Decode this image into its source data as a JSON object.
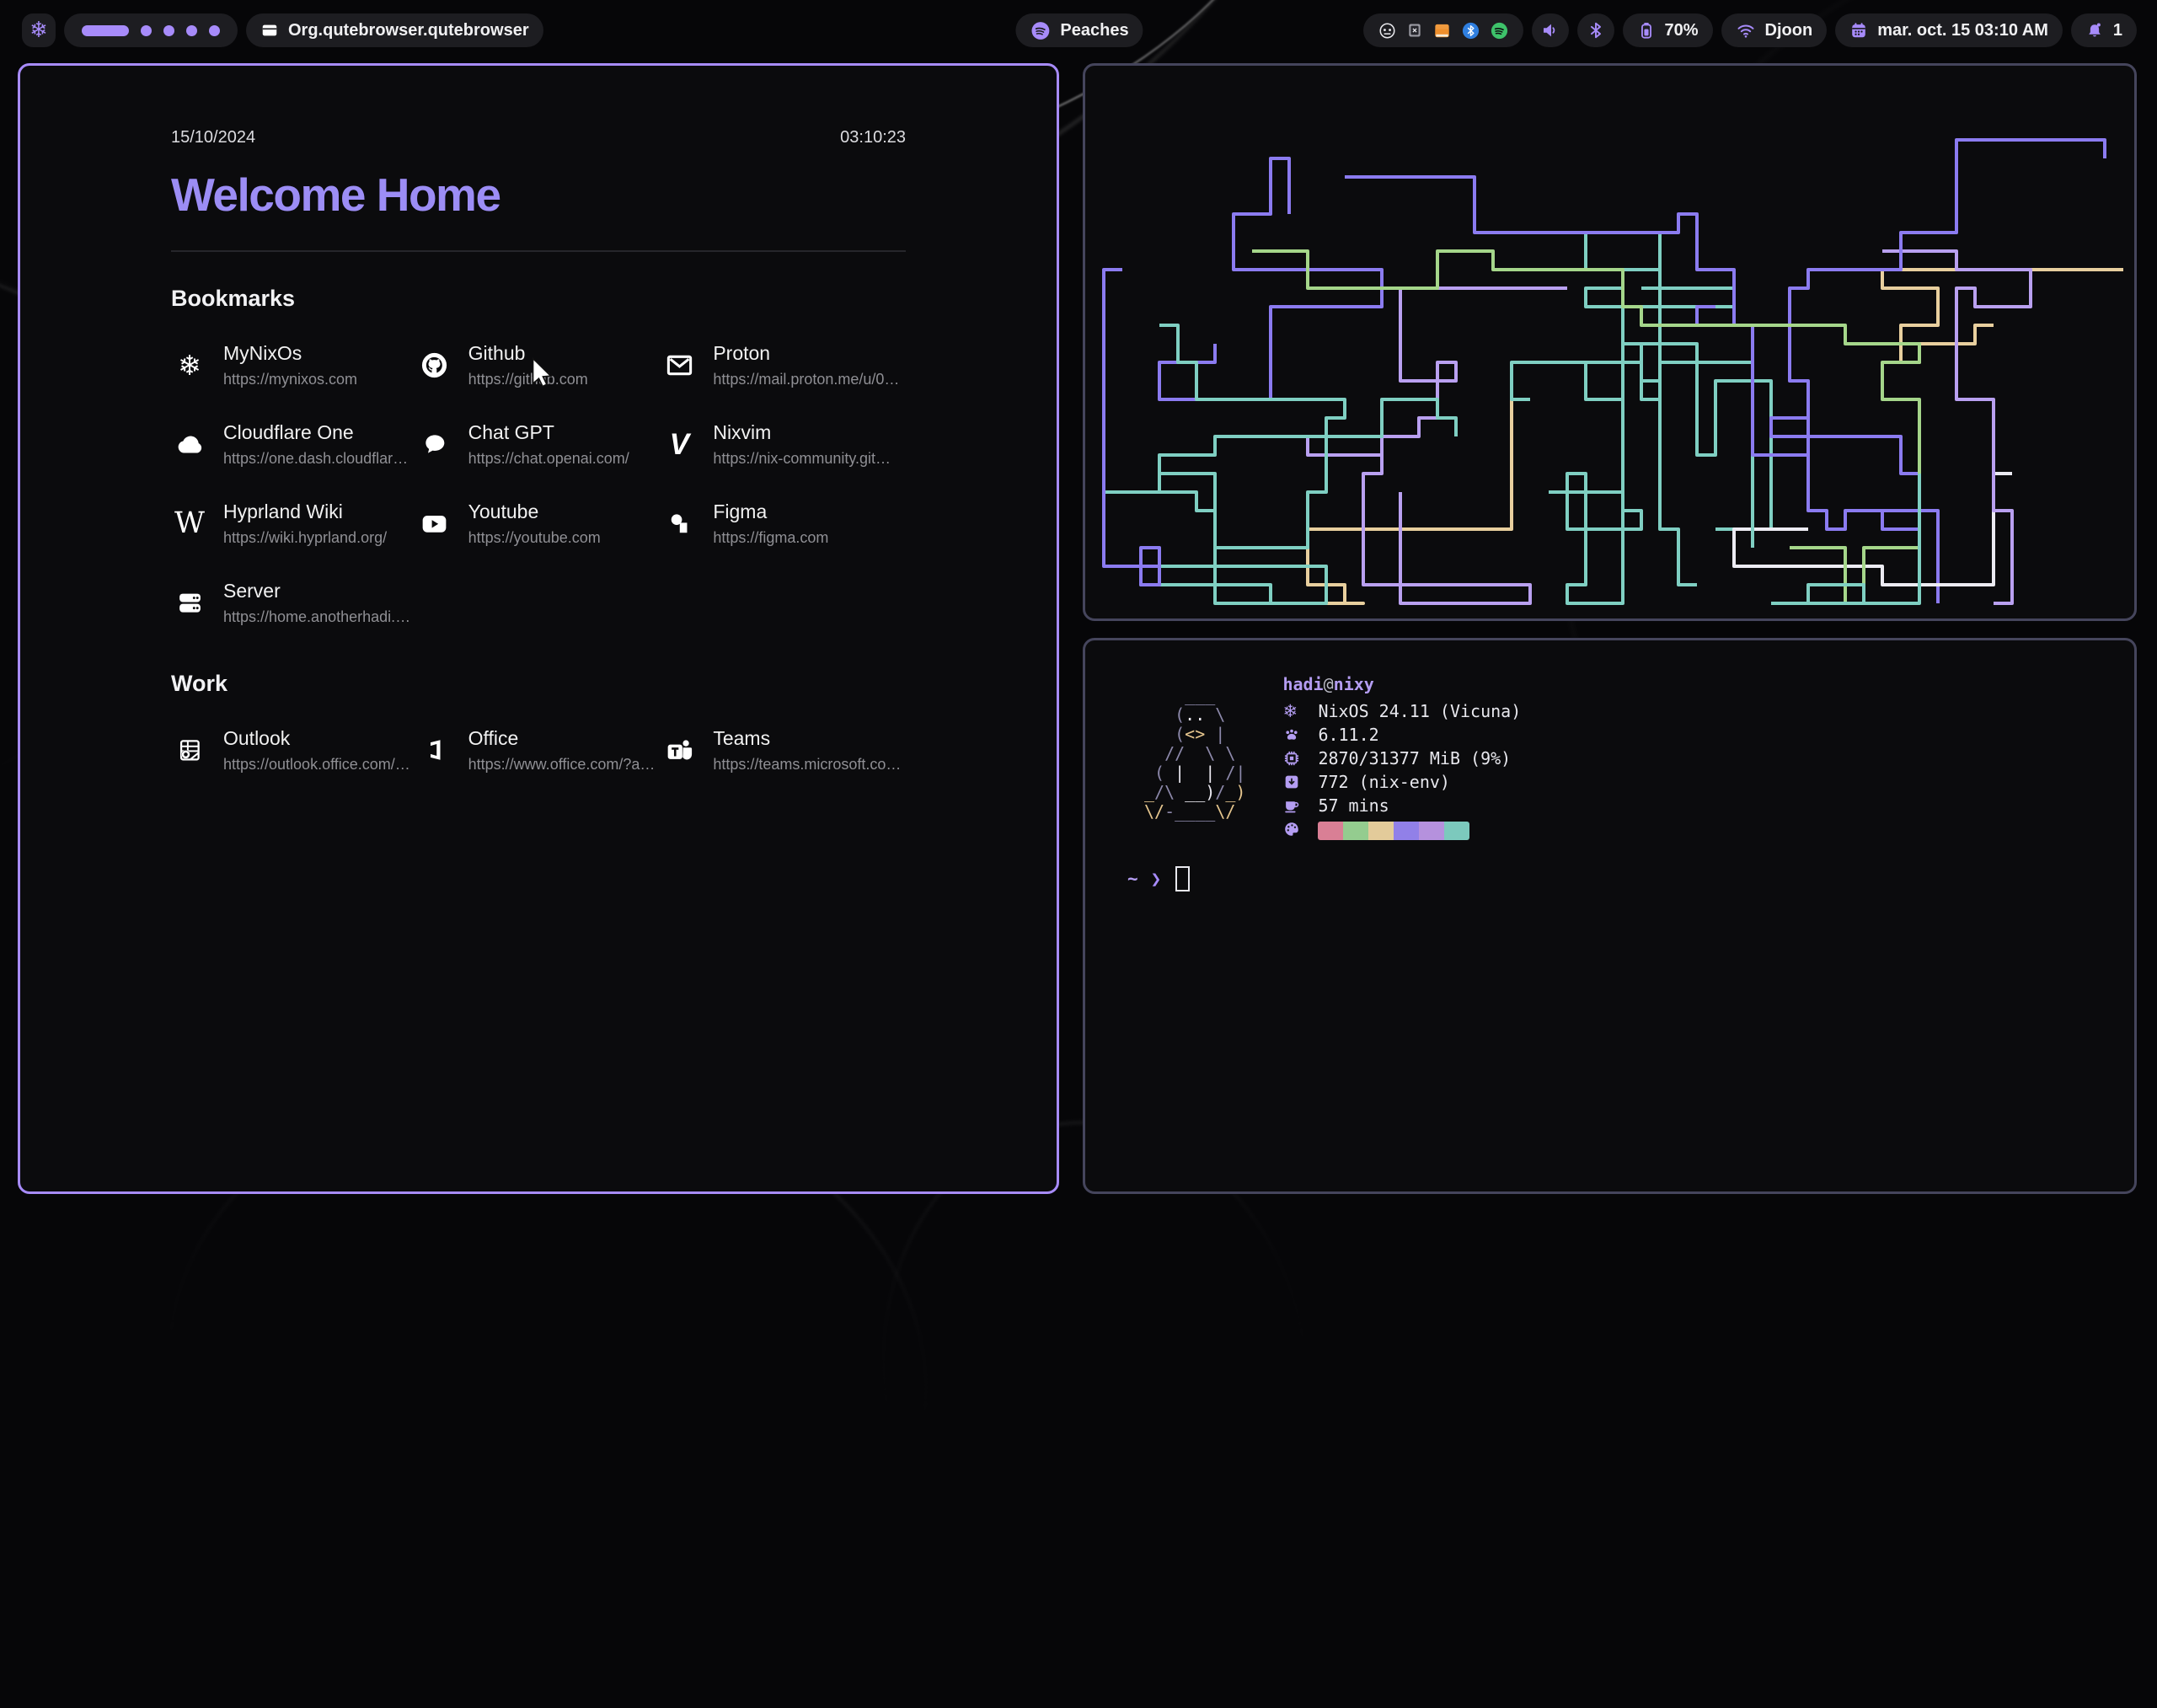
{
  "colors": {
    "accent": "#a78bfa",
    "active_border": "#a78bfa",
    "inactive_border": "#45455c",
    "terminal_purple": "#b49df2"
  },
  "bar": {
    "launcher_icon": "nixos-icon",
    "workspaces": {
      "count": 5,
      "active_index": 0
    },
    "window_title": "Org.qutebrowser.qutebrowser",
    "music": {
      "icon": "spotify-icon",
      "label": "Peaches"
    },
    "tray": [
      "disc-icon",
      "keepassxc-icon",
      "files-icon",
      "bluetooth-badge-icon",
      "spotify-badge-icon"
    ],
    "battery": {
      "label": "70%"
    },
    "network": {
      "ssid": "Djoon"
    },
    "clock": "mar. oct. 15  03:10 AM",
    "notifications": "1"
  },
  "startpage": {
    "date": "15/10/2024",
    "time": "03:10:23",
    "title": "Welcome Home",
    "sections": [
      {
        "title": "Bookmarks",
        "items": [
          {
            "name": "MyNixOs",
            "url": "https://mynixos.com",
            "icon": "nix-snowflake-icon"
          },
          {
            "name": "Github",
            "url": "https://github.com",
            "icon": "github-icon"
          },
          {
            "name": "Proton",
            "url": "https://mail.proton.me/u/0…",
            "icon": "mail-icon"
          },
          {
            "name": "Cloudflare One",
            "url": "https://one.dash.cloudflar…",
            "icon": "cloud-icon"
          },
          {
            "name": "Chat GPT",
            "url": "https://chat.openai.com/",
            "icon": "chat-icon"
          },
          {
            "name": "Nixvim",
            "url": "https://nix-community.git…",
            "icon": "nixvim-icon"
          },
          {
            "name": "Hyprland Wiki",
            "url": "https://wiki.hyprland.org/",
            "icon": "wiki-icon"
          },
          {
            "name": "Youtube",
            "url": "https://youtube.com",
            "icon": "youtube-icon"
          },
          {
            "name": "Figma",
            "url": "https://figma.com",
            "icon": "figma-icon"
          },
          {
            "name": "Server",
            "url": "https://home.anotherhadi.…",
            "icon": "server-icon"
          }
        ]
      },
      {
        "title": "Work",
        "items": [
          {
            "name": "Outlook",
            "url": "https://outlook.office.com/…",
            "icon": "outlook-icon"
          },
          {
            "name": "Office",
            "url": "https://www.office.com/?a…",
            "icon": "office-icon"
          },
          {
            "name": "Teams",
            "url": "https://teams.microsoft.co…",
            "icon": "teams-icon"
          }
        ]
      }
    ]
  },
  "pipes": {
    "palette": [
      "#7fcfc2",
      "#8b7bf0",
      "#ecebf2",
      "#a5d68a",
      "#e8cf9e",
      "#b9a0f0",
      "#79c9b0"
    ]
  },
  "terminal": {
    "user": "hadi",
    "at": "@",
    "host": "nixy",
    "ascii_art": [
      [
        [
          "    ___",
          "g"
        ]
      ],
      [
        [
          "   (",
          "g"
        ],
        [
          "..",
          "w"
        ],
        [
          " \\",
          "g"
        ]
      ],
      [
        [
          "   (",
          "g"
        ],
        [
          "<>",
          "y"
        ],
        [
          " |",
          "g"
        ]
      ],
      [
        [
          "  //  \\ \\",
          "g"
        ]
      ],
      [
        [
          " ( ",
          "g"
        ],
        [
          "|  |",
          "w"
        ],
        [
          " /|",
          "g"
        ]
      ],
      [
        [
          "_",
          "y"
        ],
        [
          "/\\ ",
          "g"
        ],
        [
          "__)",
          "w"
        ],
        [
          "/",
          "g"
        ],
        [
          "_)",
          "y"
        ]
      ],
      [
        [
          "\\/",
          "y"
        ],
        [
          "-____",
          "g"
        ],
        [
          "\\/",
          "y"
        ]
      ]
    ],
    "info": [
      {
        "icon": "nixos-icon",
        "text": "NixOS 24.11 (Vicuna)"
      },
      {
        "icon": "kernel-icon",
        "text": "6.11.2"
      },
      {
        "icon": "memory-icon",
        "text": "2870/31377 MiB (9%)"
      },
      {
        "icon": "packages-icon",
        "text": "772 (nix-env)"
      },
      {
        "icon": "uptime-icon",
        "text": "57 mins"
      }
    ],
    "palette": [
      "#d97f95",
      "#94cc8f",
      "#e3cb9a",
      "#9180e8",
      "#b591dd",
      "#7cc9bd"
    ],
    "prompt": {
      "path": "~",
      "symbol": "❯"
    }
  }
}
